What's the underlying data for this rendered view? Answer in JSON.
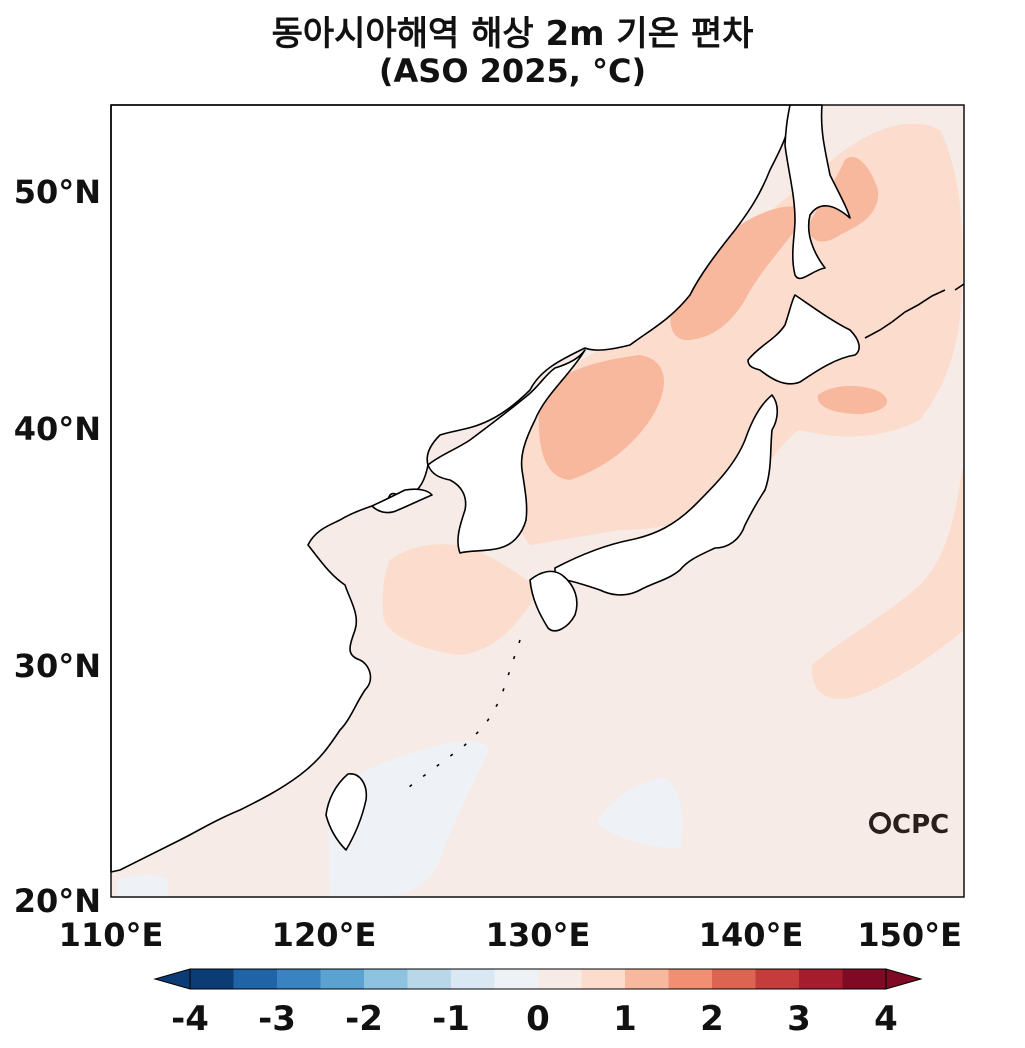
{
  "title": "동아시아해역 해상 2m 기온 편차",
  "subtitle": "(ASO 2025, °C)",
  "map": {
    "lon_ticks": [
      "110°E",
      "120°E",
      "130°E",
      "140°E",
      "150°E"
    ],
    "lat_ticks": [
      "20°N",
      "30°N",
      "40°N",
      "50°N"
    ],
    "lon_range": [
      110,
      150
    ],
    "lat_range": [
      20,
      53.5
    ]
  },
  "logo_text": "CPC",
  "colorbar": {
    "labels": [
      "-4",
      "-3",
      "-2",
      "-1",
      "0",
      "1",
      "2",
      "3",
      "4"
    ],
    "colors": [
      "#0b3c75",
      "#1f63a8",
      "#3984c0",
      "#5aa2d0",
      "#8dc2e0",
      "#b8d8ea",
      "#d9e8f2",
      "#eef2f6",
      "#f6ebe6",
      "#fcdccd",
      "#f8b89d",
      "#f08f72",
      "#dc6551",
      "#c43c3c",
      "#a51d2d",
      "#7f0a23"
    ]
  },
  "palette": {
    "background_anomaly": "#f6ebe6",
    "warm1": "#fcdccd",
    "warm2": "#f8b89d",
    "cool1": "#eef2f6",
    "land": "#ffffff",
    "coast": "#000000"
  }
}
